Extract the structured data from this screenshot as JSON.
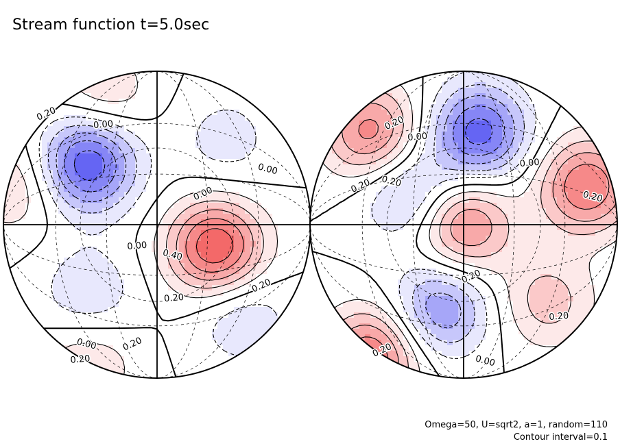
{
  "chart_data": {
    "type": "contour",
    "title": "Stream function t=5.0sec",
    "projection": "orthographic-hemispheres",
    "panels": 2,
    "contour_interval": 0.1,
    "params": "Omega=50, U=sqrt2, a=1, random=110",
    "interval_text": "Contour interval=0.1",
    "colormap": {
      "negative": "#3a3af0",
      "zero": "#ffffff",
      "positive": "#f04040"
    },
    "negative_dashed": true,
    "hemispheres": [
      {
        "name": "left",
        "features": [
          {
            "kind": "low",
            "u": -0.45,
            "v": -0.4,
            "value": -0.6
          },
          {
            "kind": "high",
            "u": 0.38,
            "v": 0.15,
            "value": 0.6
          },
          {
            "kind": "high",
            "u": -0.92,
            "v": -0.25,
            "value": 0.2
          },
          {
            "kind": "high",
            "u": -0.35,
            "v": -0.85,
            "value": 0.2
          },
          {
            "kind": "low",
            "u": -0.45,
            "v": 0.45,
            "value": -0.2
          },
          {
            "kind": "low",
            "u": 0.55,
            "v": 0.6,
            "value": -0.2
          },
          {
            "kind": "high",
            "u": -0.45,
            "v": 0.9,
            "value": 0.2
          },
          {
            "kind": "low",
            "u": 0.45,
            "v": -0.55,
            "value": -0.15
          }
        ],
        "labels": [
          {
            "text": "0.20",
            "u": -0.72,
            "v": -0.72
          },
          {
            "text": "0.00",
            "u": -0.35,
            "v": -0.65
          },
          {
            "text": "0.00",
            "u": 0.72,
            "v": -0.36
          },
          {
            "text": "0.00",
            "u": 0.3,
            "v": -0.2
          },
          {
            "text": "0.00",
            "u": -0.13,
            "v": 0.14
          },
          {
            "text": "0.40",
            "u": 0.1,
            "v": 0.2
          },
          {
            "text": "0.20",
            "u": 0.68,
            "v": 0.4
          },
          {
            "text": "0.20",
            "u": 0.11,
            "v": 0.48
          },
          {
            "text": "0.00",
            "u": -0.46,
            "v": 0.78
          },
          {
            "text": "0.20",
            "u": -0.16,
            "v": 0.78
          },
          {
            "text": "0.20",
            "u": -0.5,
            "v": 0.88
          }
        ]
      },
      {
        "name": "right",
        "features": [
          {
            "kind": "low",
            "u": 0.1,
            "v": -0.6,
            "value": -0.55
          },
          {
            "kind": "high",
            "u": 0.0,
            "v": 0.0,
            "value": 0.45
          },
          {
            "kind": "low",
            "u": -0.15,
            "v": 0.55,
            "value": -0.4
          },
          {
            "kind": "low",
            "u": -0.35,
            "v": -0.2,
            "value": -0.3
          },
          {
            "kind": "high",
            "u": -0.6,
            "v": -0.6,
            "value": 0.45
          },
          {
            "kind": "high",
            "u": 0.8,
            "v": -0.25,
            "value": 0.5
          },
          {
            "kind": "high",
            "u": -0.6,
            "v": 0.85,
            "value": 0.5
          },
          {
            "kind": "high",
            "u": 0.55,
            "v": 0.5,
            "value": 0.25
          }
        ],
        "labels": [
          {
            "text": "0.20",
            "u": -0.45,
            "v": -0.66
          },
          {
            "text": "0.00",
            "u": -0.3,
            "v": -0.57
          },
          {
            "text": "0.20",
            "u": -0.47,
            "v": -0.28
          },
          {
            "text": "0.20",
            "u": -0.67,
            "v": -0.25
          },
          {
            "text": "0.00",
            "u": 0.43,
            "v": -0.4
          },
          {
            "text": "0.20",
            "u": 0.84,
            "v": -0.18
          },
          {
            "text": "0.20",
            "u": 0.05,
            "v": 0.34
          },
          {
            "text": "0.20",
            "u": 0.62,
            "v": 0.6
          },
          {
            "text": "0.00",
            "u": 0.14,
            "v": 0.89
          },
          {
            "text": "0.20",
            "u": -0.53,
            "v": 0.82
          }
        ]
      }
    ]
  }
}
